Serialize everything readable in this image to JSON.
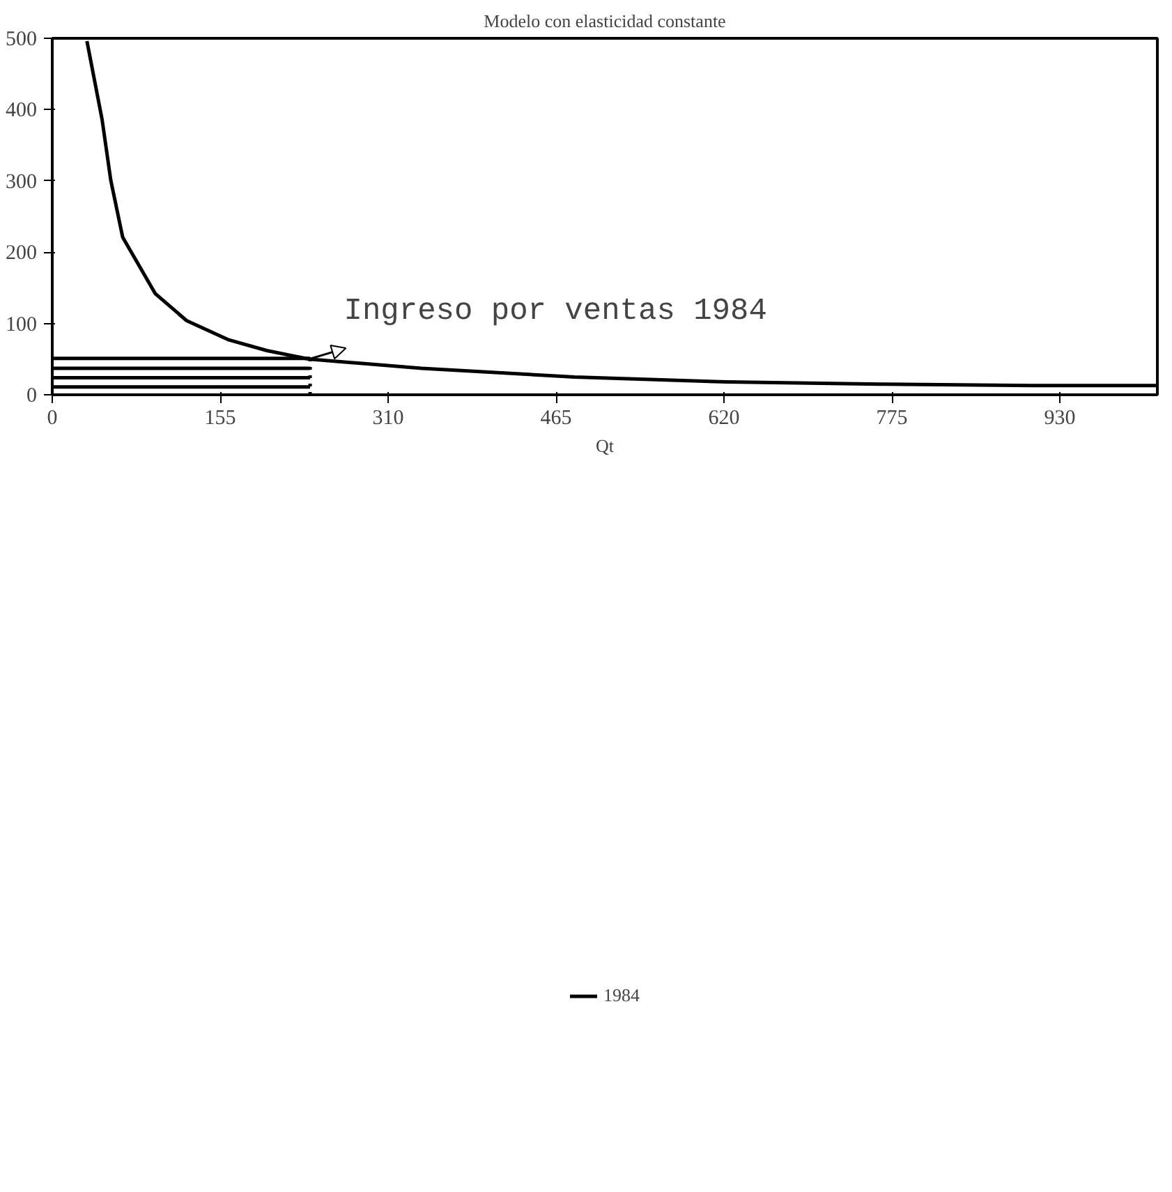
{
  "chart_data": {
    "type": "line",
    "title": "Modelo con elasticidad constante",
    "xlabel": "Qt",
    "xlim": [
      0,
      1020
    ],
    "ylim": [
      0,
      500
    ],
    "xticks": [
      0,
      155,
      310,
      465,
      620,
      775,
      930
    ],
    "yticks": [
      0,
      100,
      200,
      300,
      400,
      500
    ],
    "series": [
      {
        "name": "1984",
        "color": "#000000",
        "x": [
          32,
          46,
          54,
          65,
          95,
          124,
          163,
          198,
          237,
          341,
          482,
          623,
          764,
          906,
          1020
        ],
        "values": [
          496,
          386,
          301,
          221,
          142,
          104,
          77,
          62,
          50,
          37,
          25,
          18,
          15,
          13,
          13
        ]
      },
      {
        "color": "#000000",
        "x": [
          0,
          238
        ],
        "values": [
          51,
          51
        ]
      },
      {
        "color": "#000000",
        "x": [
          0,
          238
        ],
        "values": [
          37,
          37
        ]
      },
      {
        "color": "#000000",
        "x": [
          0,
          238
        ],
        "values": [
          24,
          24
        ]
      },
      {
        "color": "#000000",
        "x": [
          0,
          238
        ],
        "values": [
          11,
          11
        ]
      },
      {
        "color": "#000000",
        "x": [
          238,
          238
        ],
        "values": [
          0,
          51
        ],
        "line_style": "dotted"
      }
    ],
    "annotations": [
      {
        "text": "Ingreso por ventas 1984",
        "x": 237,
        "y": 50
      }
    ],
    "legend": "bottom",
    "grid": false,
    "line_style": "solid",
    "marker": "none"
  }
}
